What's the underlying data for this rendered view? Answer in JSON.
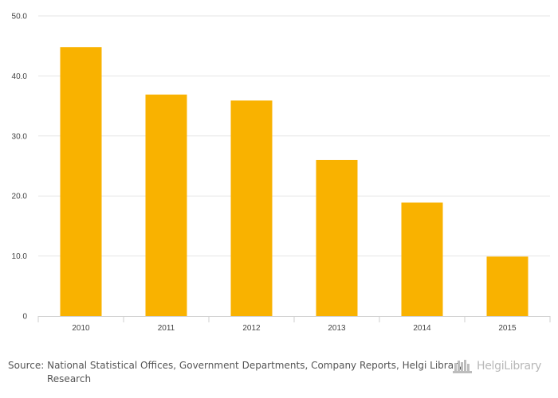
{
  "chart_data": {
    "type": "bar",
    "categories": [
      "2010",
      "2011",
      "2012",
      "2013",
      "2014",
      "2015"
    ],
    "series": [
      {
        "name": "Value",
        "values": [
          44.8,
          36.9,
          35.9,
          26.0,
          18.9,
          9.9
        ]
      }
    ],
    "ylim": [
      0,
      50
    ],
    "yticks": [
      {
        "value": 0,
        "label": "0"
      },
      {
        "value": 10,
        "label": "10.0"
      },
      {
        "value": 20,
        "label": "20.0"
      },
      {
        "value": 30,
        "label": "30.0"
      },
      {
        "value": 40,
        "label": "40.0"
      },
      {
        "value": 50,
        "label": "50.0"
      }
    ],
    "grid": true,
    "bar_color": "#f9b200",
    "title": "",
    "xlabel": "",
    "ylabel": ""
  },
  "source": {
    "label": "Source:",
    "text": "National Statistical Offices, Government Departments, Company Reports, Helgi Library Research"
  },
  "brand": {
    "name": "HelgiLibrary",
    "icon": "helgi-library-logo-icon"
  }
}
